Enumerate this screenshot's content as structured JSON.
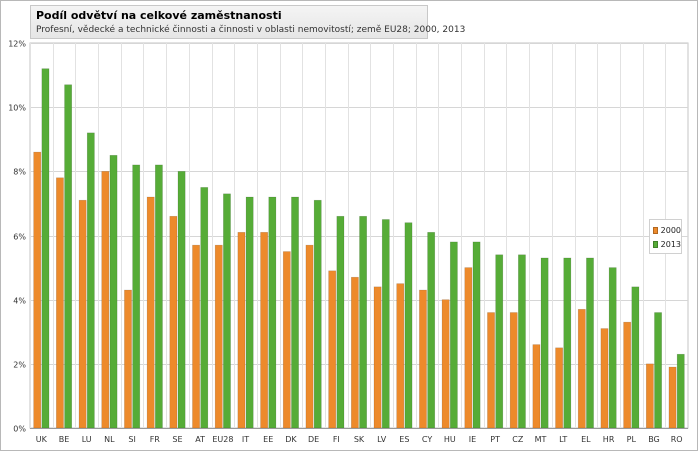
{
  "chart_data": {
    "type": "bar",
    "title": "Podíl odvětví na celkové zaměstnanosti",
    "subtitle": "Profesní, vědecké a technické činnosti a činnosti v oblasti nemovitostí; země EU28; 2000, 2013",
    "xlabel": "",
    "ylabel": "",
    "ylim": [
      0,
      12
    ],
    "yticks": [
      0,
      2,
      4,
      6,
      8,
      10,
      12
    ],
    "ytick_labels": [
      "0%",
      "2%",
      "4%",
      "6%",
      "8%",
      "10%",
      "12%"
    ],
    "grid": true,
    "legend_position": "right",
    "categories": [
      "UK",
      "BE",
      "LU",
      "NL",
      "SI",
      "FR",
      "SE",
      "AT",
      "EU28",
      "IT",
      "EE",
      "DK",
      "DE",
      "FI",
      "SK",
      "LV",
      "ES",
      "CY",
      "HU",
      "IE",
      "PT",
      "CZ",
      "MT",
      "LT",
      "EL",
      "HR",
      "PL",
      "BG",
      "RO"
    ],
    "series": [
      {
        "name": "2000",
        "color": "#ed8a2b",
        "values": [
          8.6,
          7.8,
          7.1,
          8.0,
          4.3,
          7.2,
          6.6,
          5.7,
          5.7,
          6.1,
          6.1,
          5.5,
          5.7,
          4.9,
          4.7,
          4.4,
          4.5,
          4.3,
          4.0,
          5.0,
          3.6,
          3.6,
          2.6,
          2.5,
          3.7,
          3.1,
          3.3,
          2.0,
          1.9
        ]
      },
      {
        "name": "2013",
        "color": "#56ac37",
        "values": [
          11.2,
          10.7,
          9.2,
          8.5,
          8.2,
          8.2,
          8.0,
          7.5,
          7.3,
          7.2,
          7.2,
          7.2,
          7.1,
          6.6,
          6.6,
          6.5,
          6.4,
          6.1,
          5.8,
          5.8,
          5.4,
          5.4,
          5.3,
          5.3,
          5.3,
          5.0,
          4.4,
          3.6,
          2.3
        ]
      }
    ]
  }
}
